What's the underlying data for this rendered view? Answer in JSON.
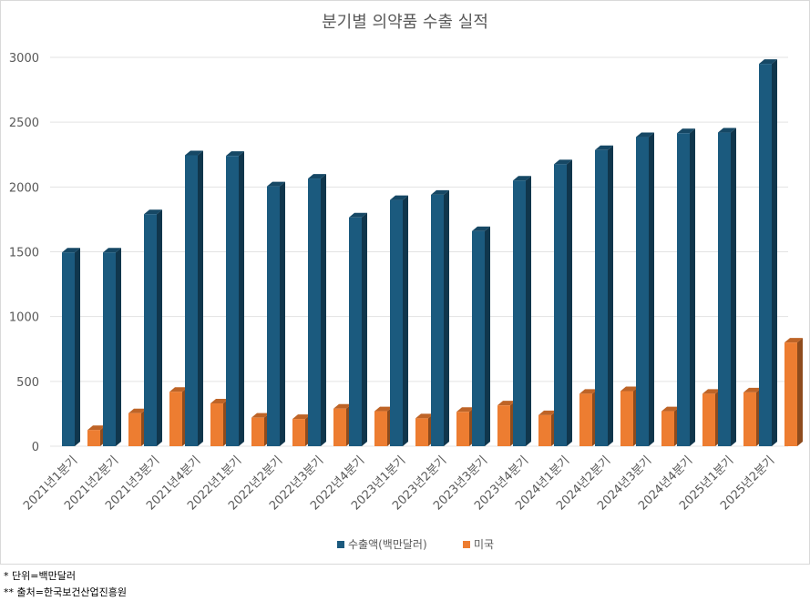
{
  "chart_data": {
    "type": "bar",
    "title": "분기별 의약품 수출 실적",
    "categories": [
      "2021년1분기",
      "2021년2분기",
      "2021년3분기",
      "2021년4분기",
      "2022년1분기",
      "2022년2분기",
      "2022년3분기",
      "2022년4분기",
      "2023년1분기",
      "2023년2분기",
      "2023년3분기",
      "2023년4분기",
      "2024년1분기",
      "2024년2분기",
      "2024년3분기",
      "2024년4분기",
      "2025년1분기",
      "2025년2분기"
    ],
    "series": [
      {
        "name": "수출액(백만달러)",
        "color": "#1b5a7e",
        "values": [
          1495,
          1495,
          1790,
          2245,
          2240,
          2005,
          2065,
          1765,
          1900,
          1940,
          1660,
          2050,
          2175,
          2285,
          2385,
          2415,
          2420,
          2950
        ]
      },
      {
        "name": "미국",
        "color": "#ed7d31",
        "values": [
          125,
          255,
          420,
          330,
          220,
          210,
          290,
          270,
          215,
          265,
          315,
          240,
          405,
          425,
          270,
          405,
          415,
          800
        ]
      }
    ],
    "yticks": [
      0,
      500,
      1000,
      1500,
      2000,
      2500,
      3000
    ],
    "ylim": [
      0,
      3000
    ],
    "grid": true,
    "legend": "bottom"
  },
  "notes": {
    "unit": "* 단위=백만달러",
    "source": "** 출처=한국보건산업진흥원"
  }
}
